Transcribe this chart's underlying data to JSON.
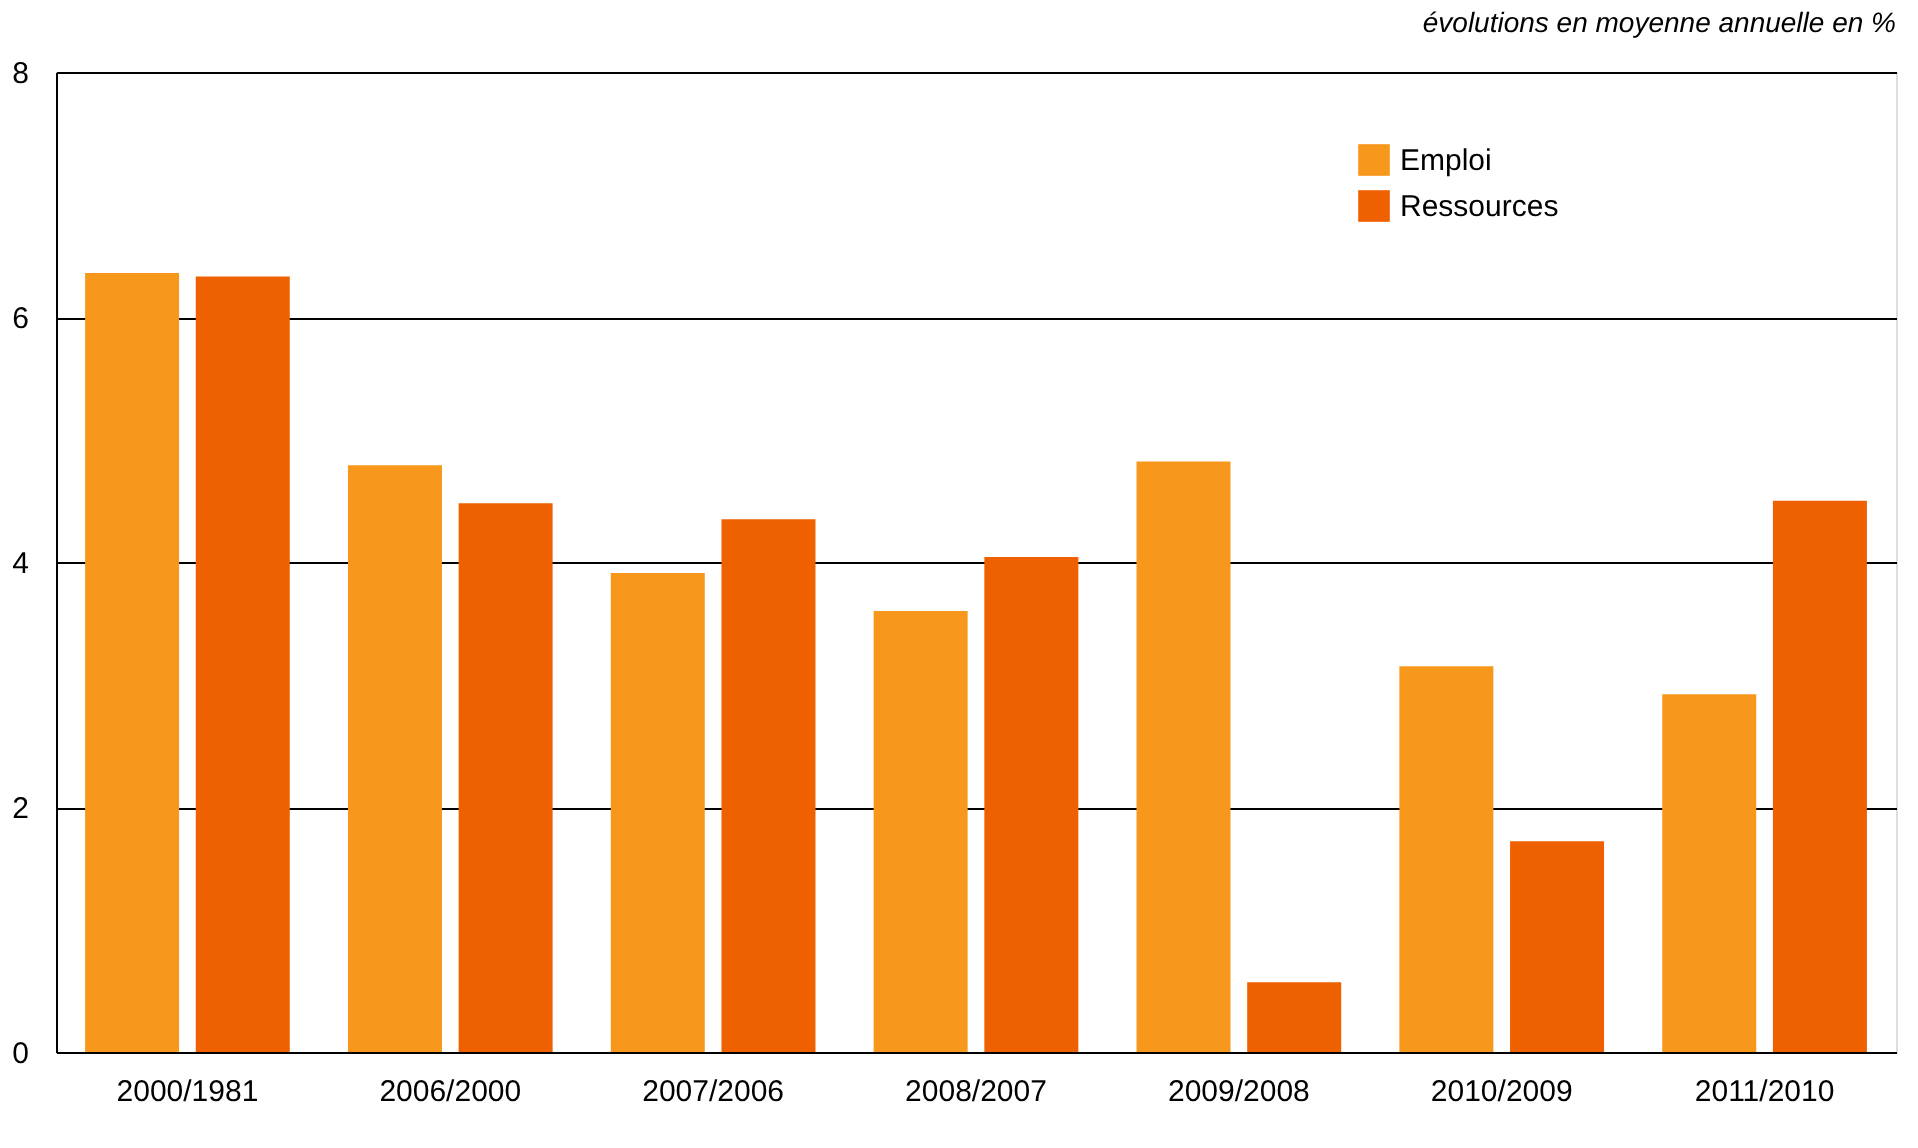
{
  "chart_data": {
    "type": "bar",
    "annotations": [
      "évolutions en moyenne annuelle en %"
    ],
    "categories": [
      "2000/1981",
      "2006/2000",
      "2007/2006",
      "2008/2007",
      "2009/2008",
      "2010/2009",
      "2011/2010"
    ],
    "series": [
      {
        "name": "Emploi",
        "color": "#f7981d",
        "values": [
          6.36,
          4.79,
          3.91,
          3.6,
          4.82,
          3.15,
          2.92
        ]
      },
      {
        "name": "Ressources",
        "color": "#ef6100",
        "values": [
          6.33,
          4.48,
          4.35,
          4.04,
          0.57,
          1.72,
          4.5
        ]
      }
    ],
    "ylim": [
      0,
      8
    ],
    "yticks": [
      0,
      2,
      4,
      6,
      8
    ],
    "grid": "y",
    "legend": "top right"
  }
}
